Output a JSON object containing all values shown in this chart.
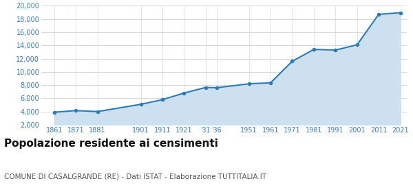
{
  "years": [
    1861,
    1871,
    1881,
    1901,
    1911,
    1921,
    1931,
    1936,
    1951,
    1961,
    1971,
    1981,
    1991,
    2001,
    2011,
    2021
  ],
  "population": [
    3900,
    4150,
    4000,
    5100,
    5800,
    6800,
    7650,
    7600,
    8200,
    8350,
    11600,
    13400,
    13300,
    14100,
    18700,
    18950
  ],
  "x_tick_labels": [
    "1861",
    "1871",
    "1881",
    "1901",
    "1911",
    "1921",
    "'31'36",
    "1951",
    "1961",
    "1971",
    "1981",
    "1991",
    "2001",
    "2011",
    "2021"
  ],
  "line_color": "#2b7bba",
  "fill_color": "#cce0f0",
  "marker_color": "#2b7bba",
  "background_color": "#ffffff",
  "grid_color_h": "#c8c8c8",
  "grid_color_v": "#b8cfe0",
  "title": "Popolazione residente ai censimenti",
  "subtitle": "COMUNE DI CASALGRANDE (RE) - Dati ISTAT - Elaborazione TUTTITALIA.IT",
  "title_fontsize": 11,
  "subtitle_fontsize": 7.5,
  "ylim": [
    2000,
    20000
  ],
  "yticks": [
    2000,
    4000,
    6000,
    8000,
    10000,
    12000,
    14000,
    16000,
    18000,
    20000
  ],
  "tick_label_color": "#3a7abf",
  "title_color": "#111111",
  "subtitle_color": "#555555"
}
